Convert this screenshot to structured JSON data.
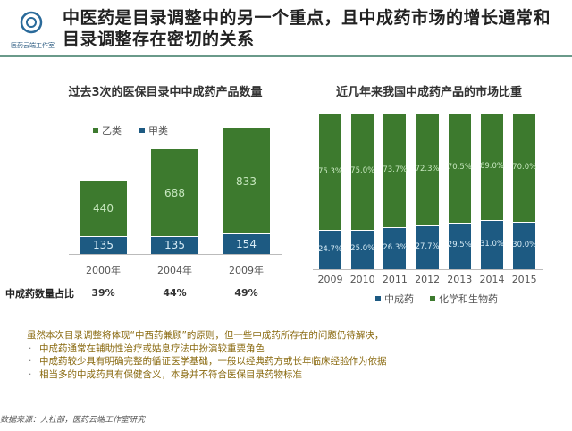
{
  "header": {
    "title": "中医药是目录调整中的另一个重点，且中成药市场的增长通常和目录调整存在密切的关系",
    "logo_text": "医药云端工作室"
  },
  "chart_data": [
    {
      "type": "bar",
      "stacked": true,
      "title": "过去3次的医保目录中中成药产品数量",
      "categories": [
        "2000年",
        "2004年",
        "2009年"
      ],
      "series": [
        {
          "name": "甲类",
          "values": [
            135,
            135,
            154
          ],
          "color": "#1d5a82"
        },
        {
          "name": "乙类",
          "values": [
            440,
            688,
            833
          ],
          "color": "#3d7a2e"
        }
      ],
      "legend": [
        "乙类",
        "甲类"
      ],
      "legend_placement": "top",
      "row_label": "中成药数量占比",
      "row_values": [
        "39%",
        "44%",
        "49%"
      ]
    },
    {
      "type": "bar",
      "stacked": true,
      "title": "近几年来我国中成药产品的市场比重",
      "categories": [
        "2009",
        "2010",
        "2011",
        "2012",
        "2013",
        "2014",
        "2015"
      ],
      "series": [
        {
          "name": "中成药",
          "values": [
            24.7,
            25.0,
            26.3,
            27.7,
            29.5,
            31.0,
            30.0
          ],
          "color": "#1d5a82"
        },
        {
          "name": "化学和生物药",
          "values": [
            75.3,
            75.0,
            73.7,
            72.3,
            70.5,
            69.0,
            70.0
          ],
          "color": "#3d7a2e"
        }
      ],
      "ylim": [
        0,
        100
      ],
      "unit": "%",
      "legend_placement": "bottom"
    }
  ],
  "notes": {
    "intro": "虽然本次目录调整将体现“中西药兼顾”的原则，但一些中成药所存在的问题仍待解决，",
    "bullets": [
      "中成药通常在辅助性治疗或姑息疗法中扮演较重要角色",
      "中成药较少具有明确完整的循证医学基础，一般以经典药方或长年临床经验作为依据",
      "相当多的中成药具有保健含义，本身并不符合医保目录药物标准"
    ]
  },
  "source": "数据来源：人社部，医药云端工作室研究"
}
